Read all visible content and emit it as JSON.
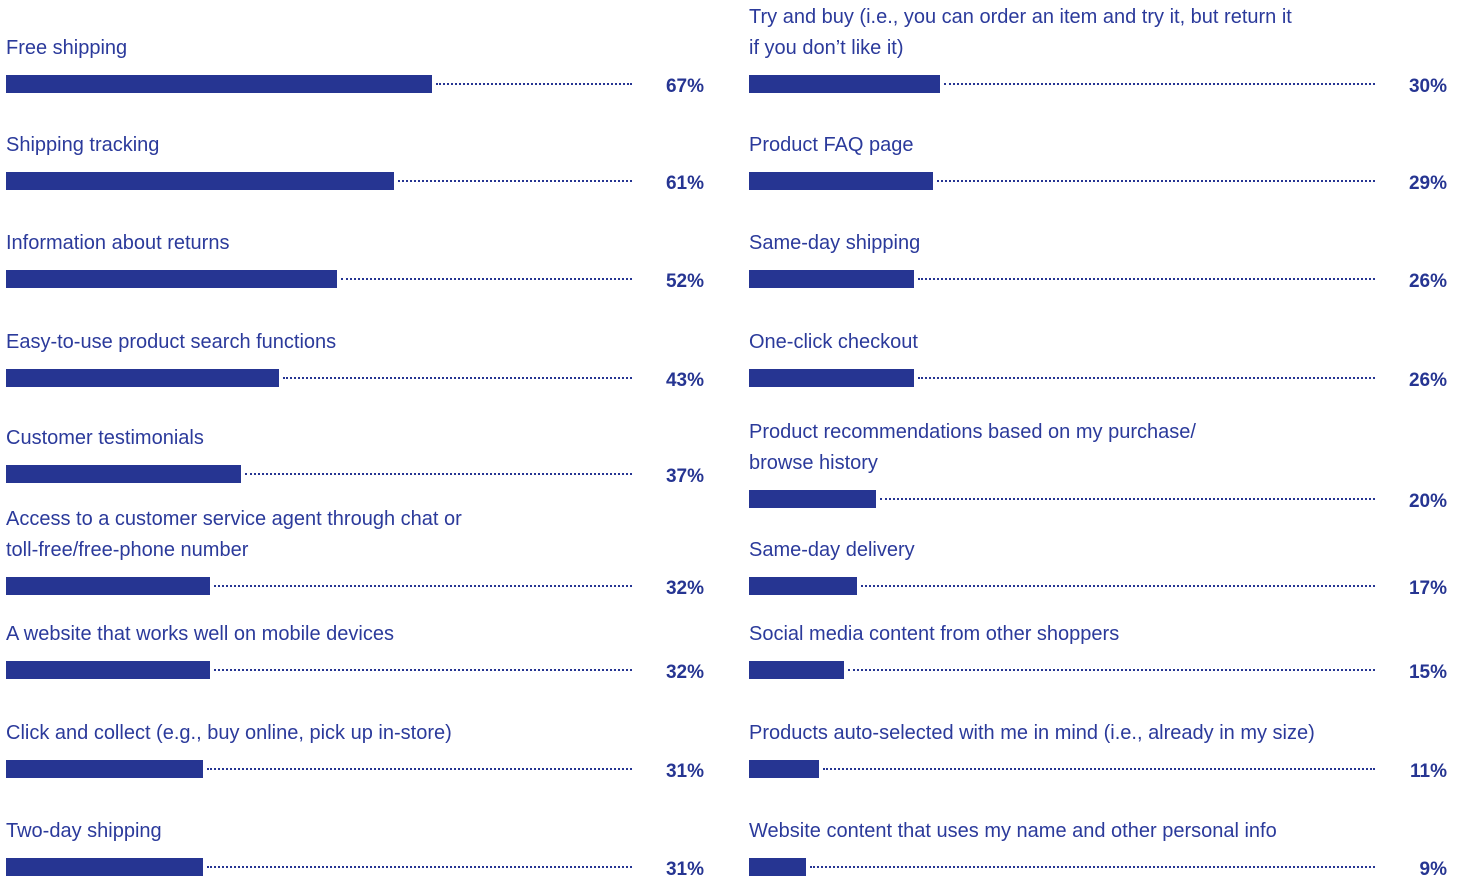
{
  "chart_data": [
    {
      "type": "bar",
      "orientation": "horizontal",
      "unit": "%",
      "xlim": [
        0,
        100
      ],
      "color": "#263592",
      "categories": [
        "Free shipping",
        "Shipping tracking",
        "Information about returns",
        "Easy-to-use product search functions",
        "Customer testimonials",
        "Access to a customer service agent through chat or toll-free/free-phone number",
        "A website that works well on mobile devices",
        "Click and collect (e.g., buy online, pick up in-store)",
        "Two-day shipping"
      ],
      "category_lines": [
        [
          "Free shipping"
        ],
        [
          "Shipping tracking"
        ],
        [
          "Information about returns"
        ],
        [
          "Easy-to-use product search functions"
        ],
        [
          "Customer testimonials"
        ],
        [
          "Access to a customer service agent through chat or",
          "toll-free/free-phone number"
        ],
        [
          "A website that works well on mobile devices"
        ],
        [
          "Click and collect (e.g., buy online, pick up in-store)"
        ],
        [
          "Two-day shipping"
        ]
      ],
      "values": [
        67,
        61,
        52,
        43,
        37,
        32,
        32,
        31,
        31
      ],
      "value_labels": [
        "67%",
        "61%",
        "52%",
        "43%",
        "37%",
        "32%",
        "32%",
        "31%",
        "31%"
      ]
    },
    {
      "type": "bar",
      "orientation": "horizontal",
      "unit": "%",
      "xlim": [
        0,
        100
      ],
      "color": "#263592",
      "categories": [
        "Try and buy (i.e., you can order an item and try it, but return it if you don’t like it)",
        "Product FAQ page",
        "Same-day shipping",
        "One-click checkout",
        "Product recommendations based on my purchase/ browse history",
        "Same-day delivery",
        "Social media content from other shoppers",
        "Products auto-selected with me in mind (i.e., already in my size)",
        "Website content that uses my name and other personal info"
      ],
      "category_lines": [
        [
          "Try and buy (i.e., you can order an item and try it, but return it",
          "if you don’t like it)"
        ],
        [
          "Product FAQ page"
        ],
        [
          "Same-day shipping"
        ],
        [
          "One-click checkout"
        ],
        [
          "Product recommendations based on my purchase/",
          "browse history"
        ],
        [
          "Same-day delivery"
        ],
        [
          "Social media content from other shoppers"
        ],
        [
          "Products auto-selected with me in mind (i.e., already in my size)"
        ],
        [
          "Website content that uses my name and other personal info"
        ]
      ],
      "values": [
        30,
        29,
        26,
        26,
        20,
        17,
        15,
        11,
        9
      ],
      "value_labels": [
        "30%",
        "29%",
        "26%",
        "26%",
        "20%",
        "17%",
        "15%",
        "11%",
        "9%"
      ]
    }
  ]
}
